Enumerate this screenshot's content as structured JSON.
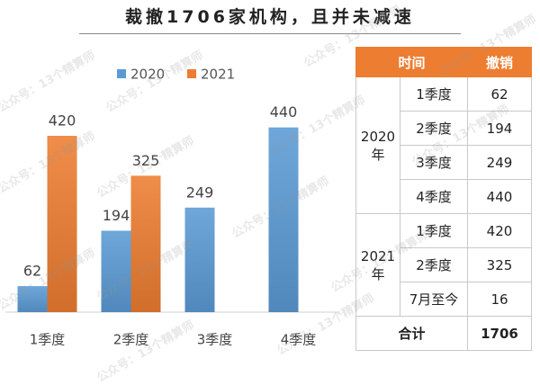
{
  "title": "裁撤1706家机构，且并未减速",
  "watermark": "公众号：13个精算师",
  "chart_data": {
    "type": "bar",
    "categories": [
      "1季度",
      "2季度",
      "3季度",
      "4季度"
    ],
    "series": [
      {
        "name": "2020",
        "color": "#5b9bd5",
        "values": [
          62,
          194,
          249,
          440
        ]
      },
      {
        "name": "2021",
        "color": "#ed7d31",
        "values": [
          420,
          325,
          null,
          null
        ]
      }
    ],
    "ylim": [
      0,
      480
    ],
    "grid": false,
    "legend": "top"
  },
  "table": {
    "header": [
      "时间",
      "撤销"
    ],
    "groups": [
      {
        "year": "2020年",
        "rows": [
          [
            "1季度",
            62
          ],
          [
            "2季度",
            194
          ],
          [
            "3季度",
            249
          ],
          [
            "4季度",
            440
          ]
        ]
      },
      {
        "year": "2021年",
        "rows": [
          [
            "1季度",
            420
          ],
          [
            "2季度",
            325
          ],
          [
            "7月至今",
            16
          ]
        ]
      }
    ],
    "total": [
      "合计",
      1706
    ]
  }
}
